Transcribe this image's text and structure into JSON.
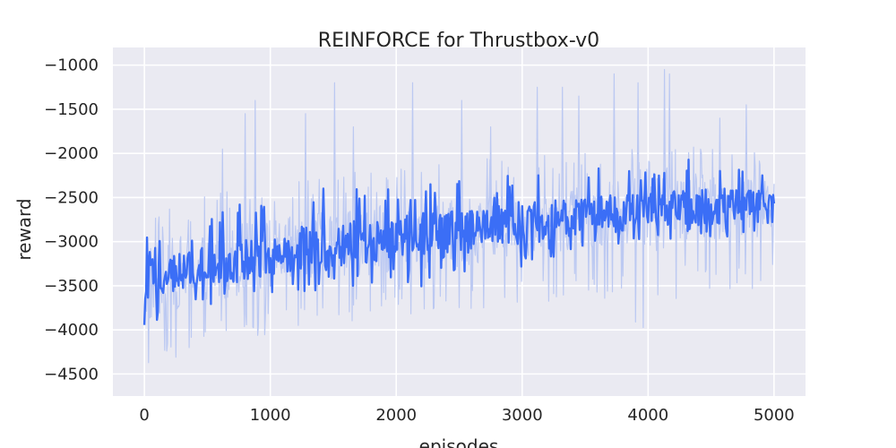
{
  "chart_data": {
    "type": "line",
    "title": "REINFORCE for Thrustbox-v0",
    "xlabel": "episodes",
    "ylabel": "reward",
    "xlim": [
      -250,
      5250
    ],
    "ylim": [
      -4750,
      -800
    ],
    "xticks": [
      0,
      1000,
      2000,
      3000,
      4000,
      5000
    ],
    "yticks": [
      -1000,
      -1500,
      -2000,
      -2500,
      -3000,
      -3500,
      -4000,
      -4500
    ],
    "xtick_labels": [
      "0",
      "1000",
      "2000",
      "3000",
      "4000",
      "5000"
    ],
    "ytick_labels": [
      "−1000",
      "−1500",
      "−2000",
      "−2500",
      "−3000",
      "−3500",
      "−4000",
      "−4500"
    ],
    "grid": true,
    "background_color": "#eaeaf2",
    "series": [
      {
        "color": "#bcc9f2",
        "kind": "raw episode rewards",
        "x": [
          0,
          250,
          500,
          750,
          1000,
          1250,
          1500,
          1750,
          2000,
          2250,
          2500,
          2750,
          3000,
          3250,
          3500,
          3750,
          4000,
          4250,
          4500,
          4750,
          5000
        ],
        "y": [
          -3500,
          -3350,
          -3300,
          -3200,
          -3150,
          -3100,
          -3050,
          -3000,
          -2950,
          -2950,
          -2900,
          -2850,
          -2800,
          -2750,
          -2720,
          -2680,
          -2650,
          -2620,
          -2600,
          -2580,
          -2650
        ],
        "band_low": [
          -4550,
          -4400,
          -4200,
          -4100,
          -4050,
          -4000,
          -3950,
          -3900,
          -3850,
          -3850,
          -3800,
          -3750,
          -3700,
          -3700,
          -3650,
          -3650,
          -4200,
          -3600,
          -3600,
          -3550,
          -3550
        ],
        "band_high": [
          -2500,
          -2550,
          -2450,
          -2300,
          -2250,
          -2250,
          -2150,
          -2200,
          -2150,
          -2100,
          -2100,
          -2050,
          -2050,
          -2000,
          -2000,
          -1950,
          -1950,
          -1950,
          -1900,
          -1900,
          -2050
        ],
        "spikes": [
          {
            "x": 620,
            "y": -1950
          },
          {
            "x": 800,
            "y": -1550
          },
          {
            "x": 880,
            "y": -1400
          },
          {
            "x": 1280,
            "y": -1550
          },
          {
            "x": 1510,
            "y": -1200
          },
          {
            "x": 1660,
            "y": -1700
          },
          {
            "x": 2130,
            "y": -1200
          },
          {
            "x": 2520,
            "y": -1400
          },
          {
            "x": 2750,
            "y": -1700
          },
          {
            "x": 3120,
            "y": -1250
          },
          {
            "x": 3320,
            "y": -1250
          },
          {
            "x": 3450,
            "y": -1350
          },
          {
            "x": 3730,
            "y": -1100
          },
          {
            "x": 3920,
            "y": -1200
          },
          {
            "x": 4130,
            "y": -1050
          },
          {
            "x": 4170,
            "y": -1100
          },
          {
            "x": 4570,
            "y": -1600
          },
          {
            "x": 4780,
            "y": -1450
          }
        ]
      },
      {
        "color": "#3b6ef6",
        "kind": "smoothed reward",
        "x": [
          0,
          250,
          500,
          750,
          1000,
          1250,
          1500,
          1750,
          2000,
          2250,
          2500,
          2750,
          3000,
          3250,
          3500,
          3750,
          4000,
          4250,
          4500,
          4750,
          5000
        ],
        "y": [
          -3450,
          -3350,
          -3280,
          -3200,
          -3150,
          -3100,
          -3050,
          -3000,
          -2950,
          -2950,
          -2900,
          -2850,
          -2800,
          -2750,
          -2720,
          -2680,
          -2650,
          -2620,
          -2600,
          -2580,
          -2550
        ],
        "band_low": [
          -4100,
          -3850,
          -3750,
          -3700,
          -3600,
          -3700,
          -3550,
          -3500,
          -3500,
          -3550,
          -3350,
          -3400,
          -3300,
          -3200,
          -3100,
          -3100,
          -3000,
          -3000,
          -2950,
          -2950,
          -2800
        ],
        "band_high": [
          -2950,
          -2950,
          -2750,
          -2550,
          -2600,
          -2500,
          -2250,
          -2400,
          -2350,
          -2300,
          -2250,
          -2350,
          -2150,
          -2150,
          -2100,
          -2150,
          -2150,
          -2100,
          -2000,
          -2200,
          -2250
        ]
      }
    ]
  }
}
